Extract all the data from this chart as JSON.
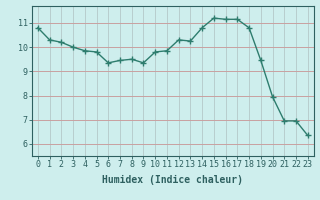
{
  "x": [
    0,
    1,
    2,
    3,
    4,
    5,
    6,
    7,
    8,
    9,
    10,
    11,
    12,
    13,
    14,
    15,
    16,
    17,
    18,
    19,
    20,
    21,
    22,
    23
  ],
  "y": [
    10.8,
    10.3,
    10.2,
    10.0,
    9.85,
    9.8,
    9.35,
    9.45,
    9.5,
    9.35,
    9.8,
    9.85,
    10.3,
    10.25,
    10.8,
    11.2,
    11.15,
    11.15,
    10.8,
    9.45,
    7.95,
    6.95,
    6.95,
    6.35
  ],
  "line_color": "#2e7d6e",
  "bg_color": "#ceeeed",
  "grid_color_h": "#c8a0a0",
  "grid_color_v": "#b8cece",
  "xlabel": "Humidex (Indice chaleur)",
  "xlim": [
    -0.5,
    23.5
  ],
  "ylim": [
    5.5,
    11.7
  ],
  "yticks": [
    6,
    7,
    8,
    9,
    10,
    11
  ],
  "xticks": [
    0,
    1,
    2,
    3,
    4,
    5,
    6,
    7,
    8,
    9,
    10,
    11,
    12,
    13,
    14,
    15,
    16,
    17,
    18,
    19,
    20,
    21,
    22,
    23
  ],
  "marker": "+",
  "marker_size": 4,
  "linewidth": 1.0,
  "label_fontsize": 7,
  "tick_fontsize": 6,
  "tick_color": "#2e6060",
  "spine_color": "#2e6060"
}
